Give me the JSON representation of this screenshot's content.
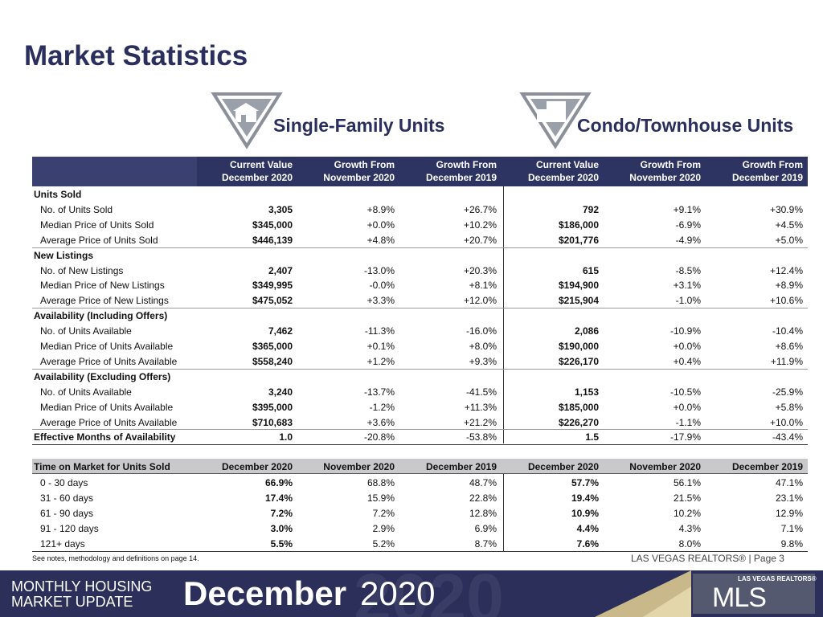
{
  "title": "Market Statistics",
  "headings": [
    "Single-Family Units",
    "Condo/Townhouse Units"
  ],
  "table": {
    "header": [
      [
        "Current Value",
        "December 2020"
      ],
      [
        "Growth From",
        "November 2020"
      ],
      [
        "Growth From",
        "December 2019"
      ],
      [
        "Current Value",
        "December 2020"
      ],
      [
        "Growth From",
        "November 2020"
      ],
      [
        "Growth From",
        "December 2019"
      ]
    ],
    "groups": [
      {
        "label": "Units Sold",
        "rows": [
          {
            "label": "No. of Units Sold",
            "cells": [
              "3,305",
              "+8.9%",
              "+26.7%",
              "792",
              "+9.1%",
              "+30.9%"
            ]
          },
          {
            "label": "Median Price of Units Sold",
            "cells": [
              "$345,000",
              "+0.0%",
              "+10.2%",
              "$186,000",
              "-6.9%",
              "+4.5%"
            ]
          },
          {
            "label": "Average Price of Units Sold",
            "cells": [
              "$446,139",
              "+4.8%",
              "+20.7%",
              "$201,776",
              "-4.9%",
              "+5.0%"
            ]
          }
        ]
      },
      {
        "label": "New Listings",
        "rows": [
          {
            "label": "No. of New Listings",
            "cells": [
              "2,407",
              "-13.0%",
              "+20.3%",
              "615",
              "-8.5%",
              "+12.4%"
            ]
          },
          {
            "label": "Median Price of New Listings",
            "cells": [
              "$349,995",
              "-0.0%",
              "+8.1%",
              "$194,900",
              "+3.1%",
              "+8.9%"
            ]
          },
          {
            "label": "Average Price of New Listings",
            "cells": [
              "$475,052",
              "+3.3%",
              "+12.0%",
              "$215,904",
              "-1.0%",
              "+10.6%"
            ]
          }
        ]
      },
      {
        "label": "Availability (Including Offers)",
        "rows": [
          {
            "label": "No. of Units Available",
            "cells": [
              "7,462",
              "-11.3%",
              "-16.0%",
              "2,086",
              "-10.9%",
              "-10.4%"
            ]
          },
          {
            "label": "Median Price of Units Available",
            "cells": [
              "$365,000",
              "+0.1%",
              "+8.0%",
              "$190,000",
              "+0.0%",
              "+8.6%"
            ]
          },
          {
            "label": "Average Price of Units Available",
            "cells": [
              "$558,240",
              "+1.2%",
              "+9.3%",
              "$226,170",
              "+0.4%",
              "+11.9%"
            ]
          }
        ]
      },
      {
        "label": "Availability (Excluding Offers)",
        "rows": [
          {
            "label": "No. of Units Available",
            "cells": [
              "3,240",
              "-13.7%",
              "-41.5%",
              "1,153",
              "-10.5%",
              "-25.9%"
            ]
          },
          {
            "label": "Median Price of Units Available",
            "cells": [
              "$395,000",
              "-1.2%",
              "+11.3%",
              "$185,000",
              "+0.0%",
              "+5.8%"
            ]
          },
          {
            "label": "Average Price of Units Available",
            "cells": [
              "$710,683",
              "+3.6%",
              "+21.2%",
              "$226,270",
              "-1.1%",
              "+10.0%"
            ]
          }
        ]
      }
    ],
    "summary": {
      "label": "Effective Months of Availability",
      "cells": [
        "1.0",
        "-20.8%",
        "-53.8%",
        "1.5",
        "-17.9%",
        "-43.4%"
      ]
    }
  },
  "time_table": {
    "label": "Time on Market for Units Sold",
    "header": [
      "December 2020",
      "November 2020",
      "December 2019",
      "December 2020",
      "November 2020",
      "December 2019"
    ],
    "rows": [
      {
        "label": "0 - 30 days",
        "cells": [
          "66.9%",
          "68.8%",
          "48.7%",
          "57.7%",
          "56.1%",
          "47.1%"
        ]
      },
      {
        "label": "31 - 60 days",
        "cells": [
          "17.4%",
          "15.9%",
          "22.8%",
          "19.4%",
          "21.5%",
          "23.1%"
        ]
      },
      {
        "label": "61 - 90 days",
        "cells": [
          "7.2%",
          "7.2%",
          "12.8%",
          "10.9%",
          "10.2%",
          "12.9%"
        ]
      },
      {
        "label": "91 - 120 days",
        "cells": [
          "3.0%",
          "2.9%",
          "6.9%",
          "4.4%",
          "4.3%",
          "7.1%"
        ]
      },
      {
        "label": "121+ days",
        "cells": [
          "5.5%",
          "5.2%",
          "8.7%",
          "7.6%",
          "8.0%",
          "9.8%"
        ]
      }
    ]
  },
  "footnote": "See notes, methodology and definitions on page 14.",
  "page_label": "LAS VEGAS REALTORS® | Page 3",
  "footer": {
    "line1": "MONTHLY HOUSING",
    "line2": "MARKET UPDATE",
    "month": "December",
    "year": "2020",
    "watermark": "2020"
  },
  "logo": {
    "top": "LAS VEGAS REALTORS®",
    "mark": "MLS"
  }
}
